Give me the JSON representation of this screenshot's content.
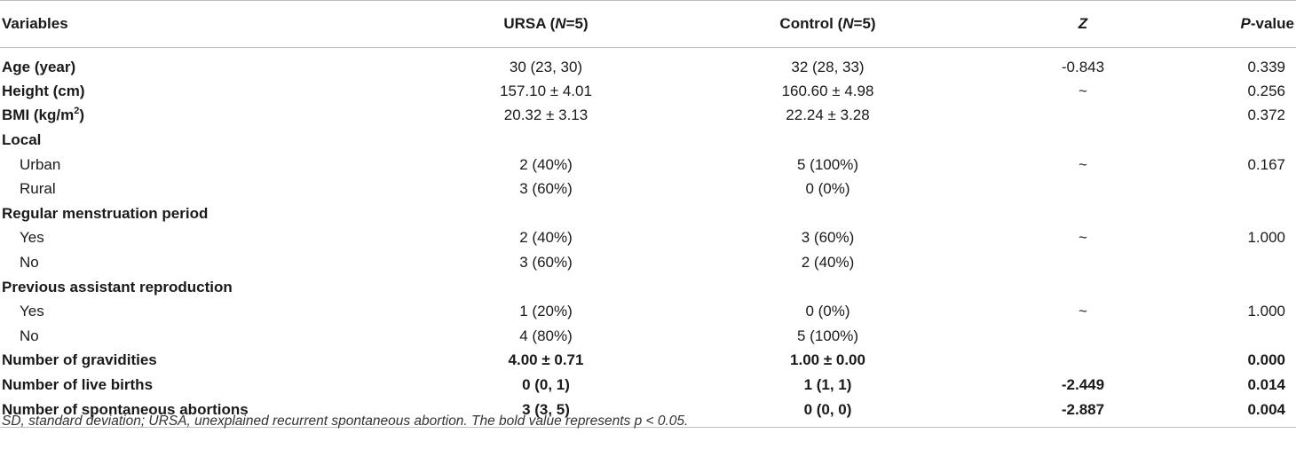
{
  "table": {
    "headers": {
      "variables": "Variables",
      "ursa_main": "URSA (",
      "ursa_n": "N",
      "ursa_rest": "=5)",
      "control_main": "Control (",
      "control_n": "N",
      "control_rest": "=5)",
      "z": "Z",
      "p_italic": "P",
      "p_rest": "-value"
    },
    "rows": [
      {
        "variable": "Age (year)",
        "ursa": "30 (23, 30)",
        "control": "32 (28, 33)",
        "z": "-0.843",
        "p": "0.339"
      },
      {
        "variable": "Height (cm)",
        "ursa": "157.10 ± 4.01",
        "control": "160.60 ± 4.98",
        "z": "~",
        "p": "0.256"
      },
      {
        "variable_main": "BMI (kg/m",
        "variable_sup": "2",
        "variable_close": ")",
        "ursa": "20.32 ± 3.13",
        "control": "22.24 ± 3.28",
        "z": "",
        "p": "0.372"
      },
      {
        "variable": "Local",
        "ursa": "",
        "control": "",
        "z": "",
        "p": ""
      },
      {
        "variable": "Urban",
        "ursa": "2 (40%)",
        "control": "5 (100%)",
        "z": "~",
        "p": "0.167"
      },
      {
        "variable": "Rural",
        "ursa": "3 (60%)",
        "control": "0 (0%)",
        "z": "",
        "p": ""
      },
      {
        "variable": "Regular menstruation period",
        "ursa": "",
        "control": "",
        "z": "",
        "p": ""
      },
      {
        "variable": "Yes",
        "ursa": "2 (40%)",
        "control": "3 (60%)",
        "z": "~",
        "p": "1.000"
      },
      {
        "variable": "No",
        "ursa": "3 (60%)",
        "control": "2 (40%)",
        "z": "",
        "p": ""
      },
      {
        "variable": "Previous assistant reproduction",
        "ursa": "",
        "control": "",
        "z": "",
        "p": ""
      },
      {
        "variable": "Yes",
        "ursa": "1 (20%)",
        "control": "0 (0%)",
        "z": "~",
        "p": "1.000"
      },
      {
        "variable": "No",
        "ursa": "4 (80%)",
        "control": "5 (100%)",
        "z": "",
        "p": ""
      },
      {
        "variable": "Number of gravidities",
        "ursa": "4.00 ± 0.71",
        "control": "1.00 ± 0.00",
        "z": "",
        "p": "0.000"
      },
      {
        "variable": "Number of live births",
        "ursa": "0 (0, 1)",
        "control": "1 (1, 1)",
        "z": "-2.449",
        "p": "0.014"
      },
      {
        "variable": "Number of spontaneous abortions",
        "ursa": "3 (3, 5)",
        "control": "0 (0, 0)",
        "z": "-2.887",
        "p": "0.004"
      }
    ]
  },
  "footnote": "SD, standard deviation; URSA, unexplained recurrent spontaneous abortion. The bold value represents p < 0.05."
}
